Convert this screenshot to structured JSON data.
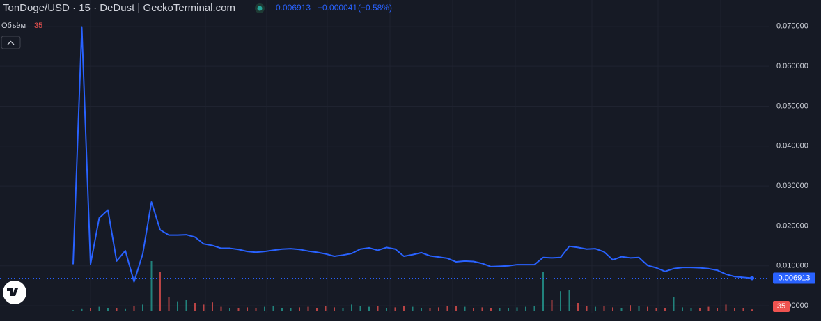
{
  "chart_data": {
    "type": "line",
    "title": "TonDoge/USD · 15 · DeDust | GeckoTerminal.com",
    "change": {
      "value": -4.1e-05,
      "label": "−0.000041"
    },
    "change_pct": {
      "value": -0.58,
      "label": "(−0.58%)"
    },
    "color": "#2962ff",
    "values": [
      0.0104,
      0.0697,
      0.0104,
      0.022,
      0.024,
      0.0112,
      0.0138,
      0.006,
      0.013,
      0.026,
      0.019,
      0.0177,
      0.0177,
      0.0178,
      0.0172,
      0.0155,
      0.0151,
      0.0144,
      0.0144,
      0.0141,
      0.0136,
      0.0134,
      0.0136,
      0.0139,
      0.0142,
      0.0143,
      0.0141,
      0.0137,
      0.0134,
      0.013,
      0.0124,
      0.0127,
      0.0131,
      0.0142,
      0.0145,
      0.0139,
      0.0146,
      0.0142,
      0.0124,
      0.0128,
      0.0133,
      0.0125,
      0.0122,
      0.0119,
      0.011,
      0.0112,
      0.0111,
      0.0106,
      0.0098,
      0.0099,
      0.01,
      0.0103,
      0.0103,
      0.0103,
      0.0121,
      0.012,
      0.0121,
      0.0149,
      0.0146,
      0.0142,
      0.0143,
      0.0135,
      0.0115,
      0.0123,
      0.012,
      0.0121,
      0.0101,
      0.0095,
      0.0086,
      0.0093,
      0.0096,
      0.0096,
      0.0095,
      0.0093,
      0.0089,
      0.0079,
      0.0073,
      0.0071,
      0.006913
    ],
    "ylim": [
      -0.0019,
      0.0766
    ],
    "yticks": [
      {
        "value": 0,
        "label": "0.000000"
      },
      {
        "value": 0.01,
        "label": "0.010000"
      },
      {
        "value": 0.02,
        "label": "0.020000"
      },
      {
        "value": 0.03,
        "label": "0.030000"
      },
      {
        "value": 0.04,
        "label": "0.040000"
      },
      {
        "value": 0.05,
        "label": "0.050000"
      },
      {
        "value": 0.06,
        "label": "0.060000"
      },
      {
        "value": 0.07,
        "label": "0.070000"
      }
    ],
    "grid": true,
    "volume": {
      "name": "Объём",
      "up_color": "#26a69a",
      "down_color": "#ef5350",
      "ylim": [
        0,
        1000
      ],
      "values": [
        20,
        40,
        60,
        80,
        50,
        60,
        40,
        90,
        120,
        900,
        700,
        250,
        180,
        200,
        150,
        120,
        160,
        80,
        60,
        50,
        70,
        60,
        80,
        90,
        60,
        50,
        70,
        80,
        60,
        90,
        70,
        60,
        120,
        100,
        80,
        90,
        60,
        70,
        90,
        80,
        60,
        50,
        70,
        90,
        100,
        80,
        60,
        70,
        60,
        50,
        60,
        70,
        80,
        90,
        700,
        200,
        360,
        380,
        150,
        100,
        80,
        90,
        70,
        60,
        110,
        90,
        80,
        60,
        60,
        250,
        70,
        50,
        60,
        80,
        60,
        120,
        60,
        50,
        35
      ]
    }
  }
}
